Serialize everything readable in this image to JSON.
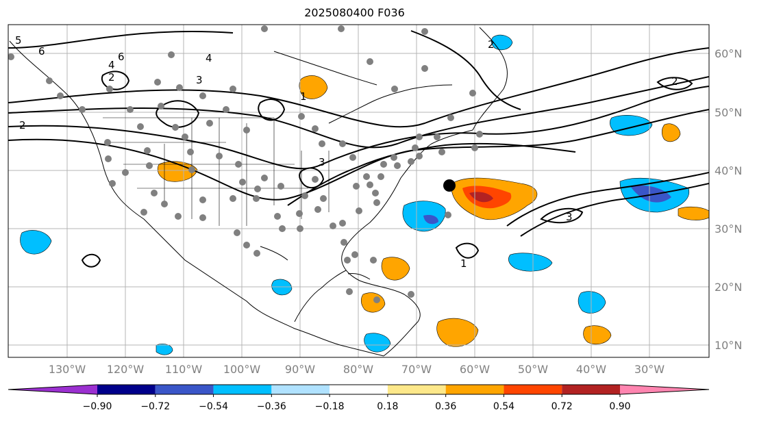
{
  "title": "2025080400 F036",
  "lat_labels": [
    "60°N",
    "50°N",
    "40°N",
    "30°N",
    "20°N",
    "10°N"
  ],
  "lon_labels": [
    "130°W",
    "120°W",
    "110°W",
    "100°W",
    "90°W",
    "80°W",
    "70°W",
    "60°W",
    "50°W",
    "40°W",
    "30°W"
  ],
  "colorbar": {
    "ticks": [
      "−0.90",
      "−0.72",
      "−0.54",
      "−0.36",
      "−0.18",
      "0.18",
      "0.36",
      "0.54",
      "0.72",
      "0.90"
    ],
    "colors": [
      "#9b30d0",
      "#00008b",
      "#3a56c8",
      "#00bfff",
      "#b0e2ff",
      "#ffffff",
      "#fde88a",
      "#ffa500",
      "#ff4500",
      "#b22222",
      "#ff85b0"
    ]
  },
  "contour_labels": [
    "2",
    "1",
    "3",
    "2",
    "1",
    "3",
    "4",
    "2",
    "5",
    "6",
    "6",
    "4",
    "3",
    "2"
  ],
  "colors": {
    "frame": "#000000",
    "grid": "#b4b4b4",
    "station": "#808080",
    "marker": "#000000"
  }
}
